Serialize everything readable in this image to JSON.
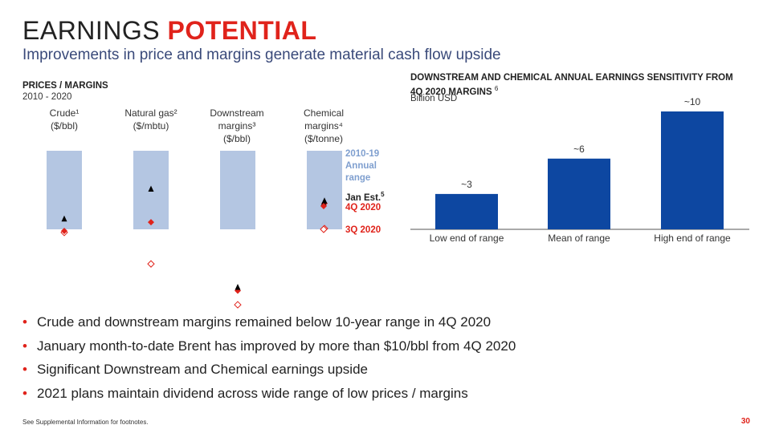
{
  "header": {
    "title_plain": "EARNINGS ",
    "title_bold": "POTENTIAL",
    "subtitle": "Improvements in price and margins generate material cash flow upside"
  },
  "left_panel": {
    "heading": "PRICES / MARGINS",
    "subheading": "2010 - 2020",
    "legend": {
      "range": "2010-19\nAnnual\nrange",
      "jan": "Jan Est.",
      "jan_sup": "5",
      "q4": "4Q 2020",
      "q3": "3Q 2020"
    }
  },
  "right_panel": {
    "heading": "DOWNSTREAM AND CHEMICAL ANNUAL EARNINGS SENSITIVITY FROM 4Q 2020 MARGINS ",
    "heading_sup": "6",
    "subheading": "Billion USD"
  },
  "bullets": [
    "Crude and downstream margins remained below 10-year range in 4Q 2020",
    "January month-to-date Brent has improved by more than $10/bbl from 4Q 2020",
    "Significant Downstream and Chemical earnings upside",
    "2021 plans maintain dividend across wide range of low prices / margins"
  ],
  "footer": {
    "note": "See Supplemental Information for footnotes.",
    "page": "30"
  },
  "colors": {
    "range": "#b4c6e2",
    "bar": "#0d47a1",
    "accent_red": "#e0231b",
    "jan_marker": "#000000",
    "legend_range": "#7f9fcf"
  },
  "chart_data": [
    {
      "type": "range-marker",
      "title": "PRICES / MARGINS",
      "categories": [
        {
          "label": "Crude¹\n($/bbl)"
        },
        {
          "label": "Natural gas²\n($/mbtu)"
        },
        {
          "label": "Downstream\nmargins³\n($/bbl)"
        },
        {
          "label": "Chemical\nmargins⁴\n($/tonne)"
        }
      ],
      "note": "Normalized within each category: 1 = top of 2010-19 annual range, 0 = bottom of range.",
      "series": [
        {
          "name": "2010-19 Annual range",
          "values": [
            [
              0,
              1
            ],
            [
              0,
              1
            ],
            [
              0,
              1
            ],
            [
              0,
              1
            ]
          ]
        },
        {
          "name": "Jan Est.",
          "values": [
            0.13,
            0.51,
            -0.74,
            0.36
          ]
        },
        {
          "name": "4Q 2020",
          "values": [
            -0.02,
            0.09,
            -0.78,
            0.33
          ]
        },
        {
          "name": "3Q 2020",
          "values": [
            -0.04,
            -0.44,
            -0.96,
            0.01
          ]
        }
      ]
    },
    {
      "type": "bar",
      "title": "DOWNSTREAM AND CHEMICAL ANNUAL EARNINGS SENSITIVITY FROM 4Q 2020 MARGINS",
      "ylabel": "Billion USD",
      "categories": [
        "Low end of range",
        "Mean of range",
        "High end of range"
      ],
      "values": [
        3,
        6,
        10
      ],
      "labels": [
        "~3",
        "~6",
        "~10"
      ],
      "ylim": [
        0,
        10.5
      ]
    }
  ]
}
